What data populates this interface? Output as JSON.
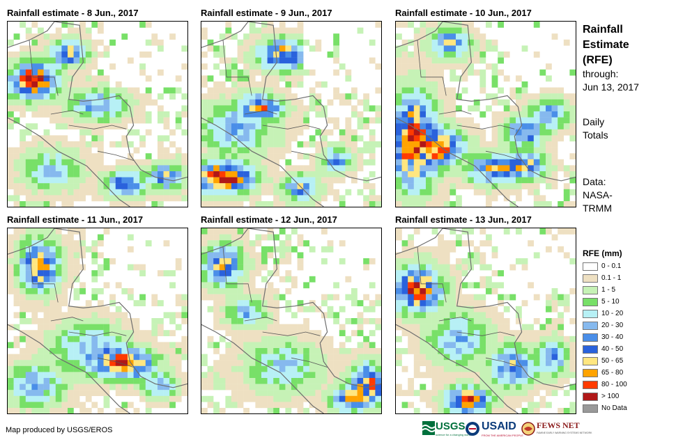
{
  "panels": [
    {
      "title": "Rainfall estimate - 8 Jun., 2017"
    },
    {
      "title": "Rainfall estimate - 9 Jun., 2017"
    },
    {
      "title": "Rainfall estimate - 10 Jun., 2017"
    },
    {
      "title": "Rainfall estimate - 11 Jun., 2017"
    },
    {
      "title": "Rainfall estimate - 12 Jun., 2017"
    },
    {
      "title": "Rainfall estimate - 13 Jun., 2017"
    }
  ],
  "sidebar": {
    "title_line1": "Rainfall",
    "title_line2": "Estimate",
    "title_line3": "(RFE)",
    "through_label": "through:",
    "through_date": "Jun 13, 2017",
    "daily_line1": "Daily",
    "daily_line2": "Totals",
    "data_line1": "Data:",
    "data_line2": "NASA-",
    "data_line3": "TRMM"
  },
  "legend": {
    "title": "RFE (mm)",
    "items": [
      {
        "label": "0 - 0.1",
        "color": "#ffffff"
      },
      {
        "label": "0.1 - 1",
        "color": "#eee0c2"
      },
      {
        "label": "1 - 5",
        "color": "#c6f2b6"
      },
      {
        "label": "5 - 10",
        "color": "#78e068"
      },
      {
        "label": "10 - 20",
        "color": "#b7f0f5"
      },
      {
        "label": "20 - 30",
        "color": "#86b9ee"
      },
      {
        "label": "30 - 40",
        "color": "#4a8ee8"
      },
      {
        "label": "40 - 50",
        "color": "#2a62dc"
      },
      {
        "label": "50 - 65",
        "color": "#ffe680"
      },
      {
        "label": "65 - 80",
        "color": "#ffa300"
      },
      {
        "label": "80 - 100",
        "color": "#ff3b00"
      },
      {
        "label": "> 100",
        "color": "#b01818"
      },
      {
        "label": "No Data",
        "color": "#999999"
      }
    ]
  },
  "footer": {
    "credit": "Map produced by USGS/EROS",
    "logos": {
      "usgs": "USGS",
      "usgs_tagline": "science for a changing world",
      "usaid": "USAID",
      "usaid_tagline": "FROM THE AMERICAN PEOPLE",
      "fews": "FEWS NET",
      "fews_tagline": "FAMINE EARLY WARNING SYSTEMS NETWORK"
    }
  },
  "colors": {
    "coast": "#6e6e6e",
    "border": "#555555"
  }
}
